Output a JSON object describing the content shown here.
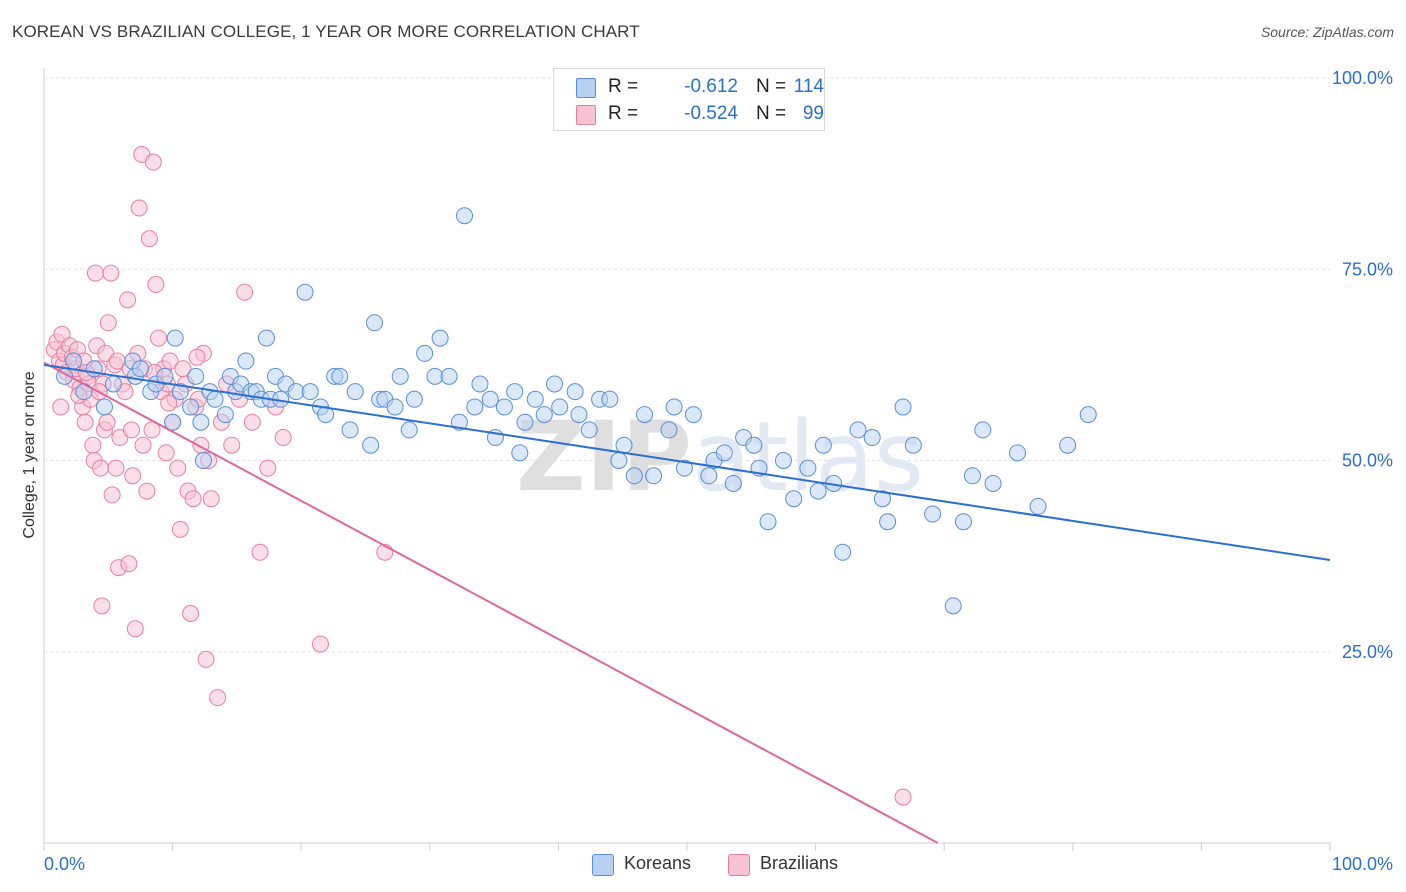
{
  "header": {
    "title": "KOREAN VS BRAZILIAN COLLEGE, 1 YEAR OR MORE CORRELATION CHART",
    "source": "Source: ZipAtlas.com"
  },
  "stats": [
    {
      "r_label": "R =",
      "r_value": "-0.612",
      "n_label": "N =",
      "n_value": "114"
    },
    {
      "r_label": "R =",
      "r_value": "-0.524",
      "n_label": "N =",
      "n_value": "99"
    }
  ],
  "legend": [
    {
      "label": "Koreans"
    },
    {
      "label": "Brazilians"
    }
  ],
  "chart_data": {
    "type": "scatter",
    "ylabel": "College, 1 year or more",
    "xlim": [
      0,
      100
    ],
    "ylim": [
      0,
      100
    ],
    "x_ticks": [
      "0.0%",
      "100.0%"
    ],
    "y_ticks": [
      {
        "value": 100,
        "label": "100.0%"
      },
      {
        "value": 75,
        "label": "75.0%"
      },
      {
        "value": 50,
        "label": "50.0%"
      },
      {
        "value": 25,
        "label": "25.0%"
      }
    ],
    "grid": true,
    "legend_position": "bottom-center",
    "watermark": "ZIPatlas",
    "colors": {
      "koreans_fill": "#b8d1f3",
      "koreans_stroke": "#5a8ed8",
      "koreans_line": "#2c6fd1",
      "brazilians_fill": "#f8c3d3",
      "brazilians_stroke": "#e87fa1",
      "brazilians_line": "#e0679a",
      "tick_label": "#2b6fd0"
    },
    "series": [
      {
        "name": "Koreans",
        "trend": {
          "x0": 0,
          "y0": 62.5,
          "x1": 100,
          "y1": 37
        },
        "points": [
          [
            1.6,
            61.0
          ],
          [
            2.3,
            63.0
          ],
          [
            3.1,
            59.0
          ],
          [
            3.9,
            62.0
          ],
          [
            4.7,
            57.0
          ],
          [
            5.4,
            60.0
          ],
          [
            6.9,
            63.0
          ],
          [
            7.1,
            61.0
          ],
          [
            7.5,
            62.0
          ],
          [
            8.3,
            59.0
          ],
          [
            8.7,
            60.0
          ],
          [
            9.4,
            61.0
          ],
          [
            10.0,
            55.0
          ],
          [
            10.2,
            66.0
          ],
          [
            10.6,
            59.0
          ],
          [
            11.4,
            57.0
          ],
          [
            11.8,
            61.0
          ],
          [
            12.2,
            55.0
          ],
          [
            12.4,
            50.0
          ],
          [
            12.9,
            59.0
          ],
          [
            13.3,
            58.0
          ],
          [
            14.1,
            56.0
          ],
          [
            14.5,
            61.0
          ],
          [
            14.9,
            59.0
          ],
          [
            15.3,
            60.0
          ],
          [
            15.7,
            63.0
          ],
          [
            16.1,
            59.0
          ],
          [
            16.5,
            59.0
          ],
          [
            16.9,
            58.0
          ],
          [
            17.3,
            66.0
          ],
          [
            17.6,
            58.0
          ],
          [
            18.0,
            61.0
          ],
          [
            18.4,
            58.0
          ],
          [
            18.8,
            60.0
          ],
          [
            19.6,
            59.0
          ],
          [
            20.3,
            72.0
          ],
          [
            20.7,
            59.0
          ],
          [
            21.5,
            57.0
          ],
          [
            21.9,
            56.0
          ],
          [
            22.6,
            61.0
          ],
          [
            23.0,
            61.0
          ],
          [
            23.8,
            54.0
          ],
          [
            24.2,
            59.0
          ],
          [
            25.4,
            52.0
          ],
          [
            25.7,
            68.0
          ],
          [
            26.1,
            58.0
          ],
          [
            26.5,
            58.0
          ],
          [
            27.3,
            57.0
          ],
          [
            27.7,
            61.0
          ],
          [
            28.4,
            54.0
          ],
          [
            28.8,
            58.0
          ],
          [
            29.6,
            64.0
          ],
          [
            30.4,
            61.0
          ],
          [
            30.8,
            66.0
          ],
          [
            31.5,
            61.0
          ],
          [
            32.3,
            55.0
          ],
          [
            32.7,
            82.0
          ],
          [
            33.5,
            57.0
          ],
          [
            33.9,
            60.0
          ],
          [
            34.7,
            58.0
          ],
          [
            35.1,
            53.0
          ],
          [
            35.8,
            57.0
          ],
          [
            36.6,
            59.0
          ],
          [
            37.0,
            51.0
          ],
          [
            37.4,
            55.0
          ],
          [
            38.2,
            58.0
          ],
          [
            38.9,
            56.0
          ],
          [
            39.7,
            60.0
          ],
          [
            40.1,
            57.0
          ],
          [
            41.3,
            59.0
          ],
          [
            41.6,
            56.0
          ],
          [
            42.4,
            54.0
          ],
          [
            43.2,
            58.0
          ],
          [
            44.0,
            58.0
          ],
          [
            44.7,
            50.0
          ],
          [
            45.1,
            52.0
          ],
          [
            45.9,
            48.0
          ],
          [
            46.7,
            56.0
          ],
          [
            47.4,
            48.0
          ],
          [
            48.6,
            54.0
          ],
          [
            49.0,
            57.0
          ],
          [
            49.8,
            49.0
          ],
          [
            50.5,
            56.0
          ],
          [
            51.7,
            48.0
          ],
          [
            52.1,
            50.0
          ],
          [
            52.9,
            51.0
          ],
          [
            53.6,
            47.0
          ],
          [
            54.4,
            53.0
          ],
          [
            55.2,
            52.0
          ],
          [
            55.6,
            49.0
          ],
          [
            56.3,
            42.0
          ],
          [
            57.5,
            50.0
          ],
          [
            58.3,
            45.0
          ],
          [
            59.4,
            49.0
          ],
          [
            60.2,
            46.0
          ],
          [
            60.6,
            52.0
          ],
          [
            61.4,
            47.0
          ],
          [
            62.1,
            38.0
          ],
          [
            63.3,
            54.0
          ],
          [
            64.4,
            53.0
          ],
          [
            65.2,
            45.0
          ],
          [
            65.6,
            42.0
          ],
          [
            66.8,
            57.0
          ],
          [
            67.6,
            52.0
          ],
          [
            69.1,
            43.0
          ],
          [
            70.7,
            31.0
          ],
          [
            71.5,
            42.0
          ],
          [
            72.2,
            48.0
          ],
          [
            73.0,
            54.0
          ],
          [
            73.8,
            47.0
          ],
          [
            75.7,
            51.0
          ],
          [
            77.3,
            44.0
          ],
          [
            79.6,
            52.0
          ],
          [
            81.2,
            56.0
          ]
        ]
      },
      {
        "name": "Brazilians",
        "trend": {
          "x0": 0,
          "y0": 62.8,
          "x1": 69.5,
          "y1": 0
        },
        "points": [
          [
            0.8,
            64.5
          ],
          [
            1.0,
            65.5
          ],
          [
            1.2,
            63.0
          ],
          [
            1.4,
            66.5
          ],
          [
            1.5,
            62.5
          ],
          [
            1.6,
            64.0
          ],
          [
            1.8,
            61.5
          ],
          [
            2.0,
            65.0
          ],
          [
            2.2,
            63.5
          ],
          [
            2.3,
            60.5
          ],
          [
            2.5,
            62.0
          ],
          [
            2.6,
            64.5
          ],
          [
            2.8,
            59.5
          ],
          [
            3.0,
            57.0
          ],
          [
            3.1,
            63.0
          ],
          [
            3.2,
            55.0
          ],
          [
            3.4,
            61.0
          ],
          [
            3.5,
            60.0
          ],
          [
            3.6,
            58.0
          ],
          [
            3.8,
            52.0
          ],
          [
            3.9,
            50.0
          ],
          [
            4.0,
            74.5
          ],
          [
            4.1,
            65.0
          ],
          [
            4.2,
            62.0
          ],
          [
            4.4,
            49.0
          ],
          [
            4.5,
            31.0
          ],
          [
            4.6,
            60.0
          ],
          [
            4.7,
            54.0
          ],
          [
            4.8,
            64.0
          ],
          [
            4.9,
            55.0
          ],
          [
            5.0,
            68.0
          ],
          [
            5.2,
            74.5
          ],
          [
            5.3,
            45.5
          ],
          [
            5.5,
            62.5
          ],
          [
            5.6,
            49.0
          ],
          [
            5.8,
            36.0
          ],
          [
            5.9,
            53.0
          ],
          [
            6.1,
            60.0
          ],
          [
            6.3,
            59.0
          ],
          [
            6.5,
            71.0
          ],
          [
            6.6,
            36.5
          ],
          [
            6.8,
            54.0
          ],
          [
            6.9,
            48.0
          ],
          [
            7.1,
            28.0
          ],
          [
            7.3,
            64.0
          ],
          [
            7.4,
            83.0
          ],
          [
            7.6,
            90.0
          ],
          [
            7.8,
            62.0
          ],
          [
            8.0,
            46.0
          ],
          [
            8.2,
            79.0
          ],
          [
            8.4,
            54.0
          ],
          [
            8.5,
            89.0
          ],
          [
            8.7,
            73.0
          ],
          [
            8.9,
            66.0
          ],
          [
            9.1,
            59.0
          ],
          [
            9.3,
            62.0
          ],
          [
            9.5,
            51.0
          ],
          [
            9.6,
            60.0
          ],
          [
            9.8,
            63.0
          ],
          [
            10.0,
            55.0
          ],
          [
            10.2,
            58.0
          ],
          [
            10.4,
            49.0
          ],
          [
            10.6,
            41.0
          ],
          [
            10.8,
            62.0
          ],
          [
            11.0,
            60.0
          ],
          [
            11.2,
            46.0
          ],
          [
            11.4,
            30.0
          ],
          [
            11.6,
            45.0
          ],
          [
            11.8,
            57.0
          ],
          [
            12.0,
            58.0
          ],
          [
            12.2,
            52.0
          ],
          [
            12.4,
            64.0
          ],
          [
            12.6,
            24.0
          ],
          [
            12.8,
            50.0
          ],
          [
            13.0,
            45.0
          ],
          [
            13.5,
            19.0
          ],
          [
            13.8,
            55.0
          ],
          [
            14.2,
            60.0
          ],
          [
            14.6,
            52.0
          ],
          [
            15.2,
            58.0
          ],
          [
            15.6,
            72.0
          ],
          [
            16.2,
            55.0
          ],
          [
            16.8,
            38.0
          ],
          [
            17.4,
            49.0
          ],
          [
            18.0,
            57.0
          ],
          [
            18.6,
            53.0
          ],
          [
            21.5,
            26.0
          ],
          [
            26.5,
            38.0
          ],
          [
            66.8,
            6.0
          ],
          [
            1.3,
            57.0
          ],
          [
            2.7,
            58.5
          ],
          [
            3.3,
            61.5
          ],
          [
            4.3,
            59.0
          ],
          [
            5.7,
            63.0
          ],
          [
            6.7,
            62.0
          ],
          [
            7.7,
            52.0
          ],
          [
            8.6,
            61.5
          ],
          [
            9.7,
            57.5
          ],
          [
            11.9,
            63.5
          ]
        ]
      }
    ]
  }
}
